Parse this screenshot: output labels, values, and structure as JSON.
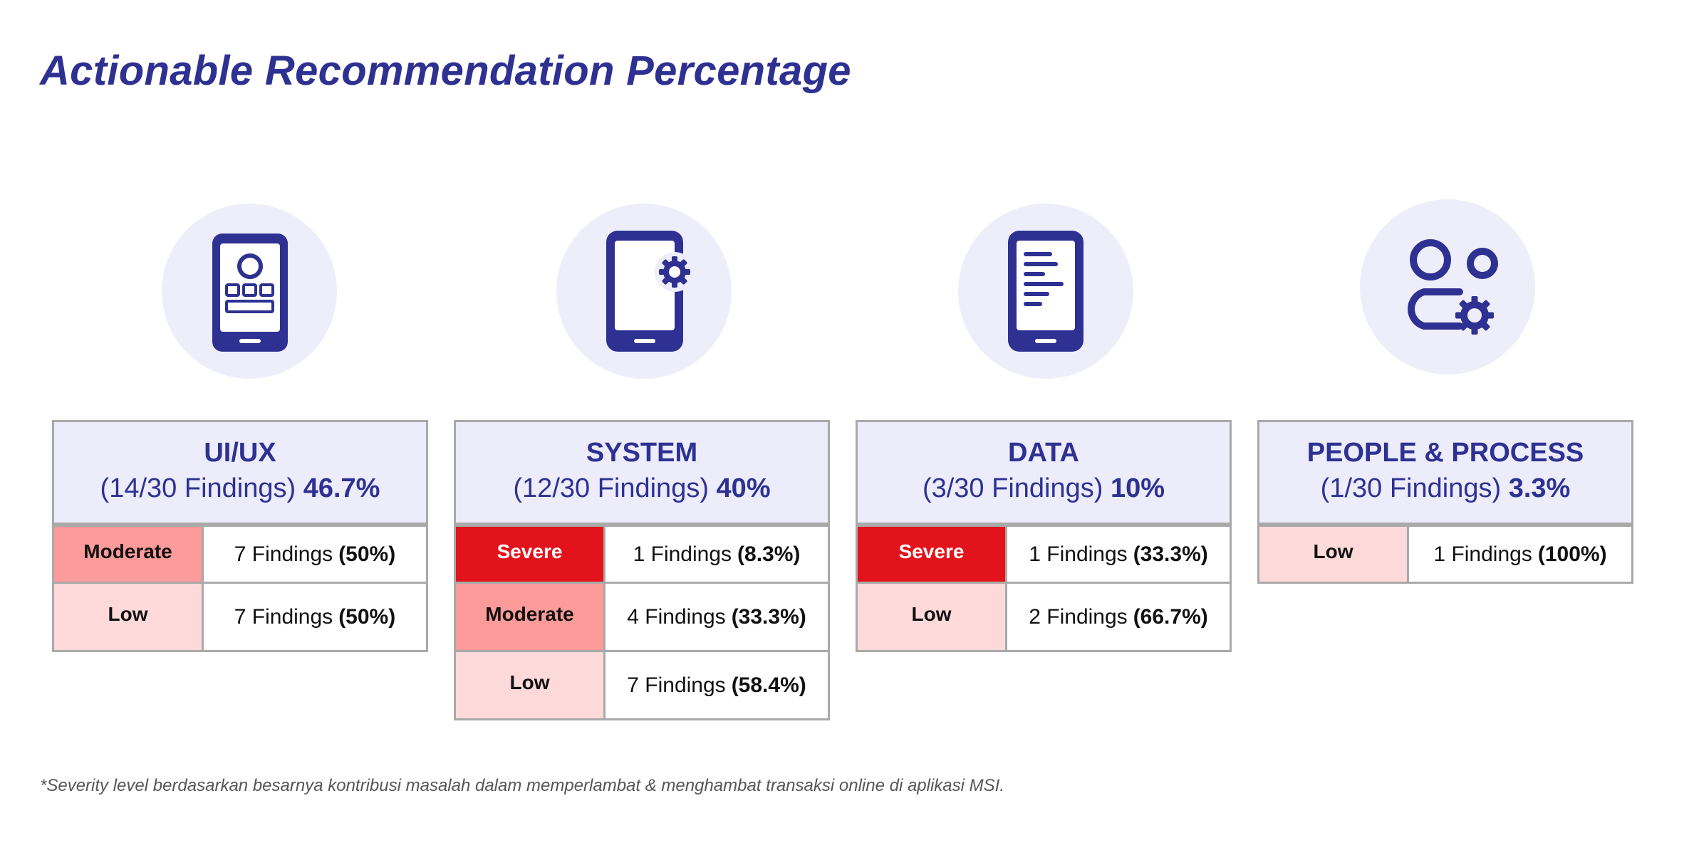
{
  "title": "Actionable Recommendation Percentage",
  "colors": {
    "brand": "#2e3192",
    "header_bg": "#ececfb",
    "severe": "#e3131b",
    "moderate": "#fd9a9a",
    "low": "#fdd9da"
  },
  "categories": [
    {
      "name": "UI/UX",
      "findings": "(14/30 Findings)",
      "percent": "46.7%",
      "icon": "mobile-app-ui-icon",
      "rows": [
        {
          "severity": "Moderate",
          "count": "7 Findings",
          "share": "(50%)"
        },
        {
          "severity": "Low",
          "count": "7 Findings",
          "share": "(50%)"
        }
      ]
    },
    {
      "name": "SYSTEM",
      "findings": "(12/30 Findings)",
      "percent": "40%",
      "icon": "mobile-settings-icon",
      "rows": [
        {
          "severity": "Severe",
          "count": "1 Findings",
          "share": "(8.3%)"
        },
        {
          "severity": "Moderate",
          "count": "4 Findings",
          "share": "(33.3%)"
        },
        {
          "severity": "Low",
          "count": "7 Findings",
          "share": "(58.4%)"
        }
      ]
    },
    {
      "name": "DATA",
      "findings": "(3/30 Findings)",
      "percent": "10%",
      "icon": "mobile-document-icon",
      "rows": [
        {
          "severity": "Severe",
          "count": "1 Findings",
          "share": "(33.3%)"
        },
        {
          "severity": "Low",
          "count": "2 Findings",
          "share": "(66.7%)"
        }
      ]
    },
    {
      "name": "PEOPLE & PROCESS",
      "findings": "(1/30 Findings)",
      "percent": "3.3%",
      "icon": "people-settings-icon",
      "rows": [
        {
          "severity": "Low",
          "count": "1 Findings",
          "share": "(100%)"
        }
      ]
    }
  ],
  "footnote": "*Severity level berdasarkan besarnya kontribusi masalah dalam memperlambat & menghambat transaksi online di aplikasi MSI."
}
